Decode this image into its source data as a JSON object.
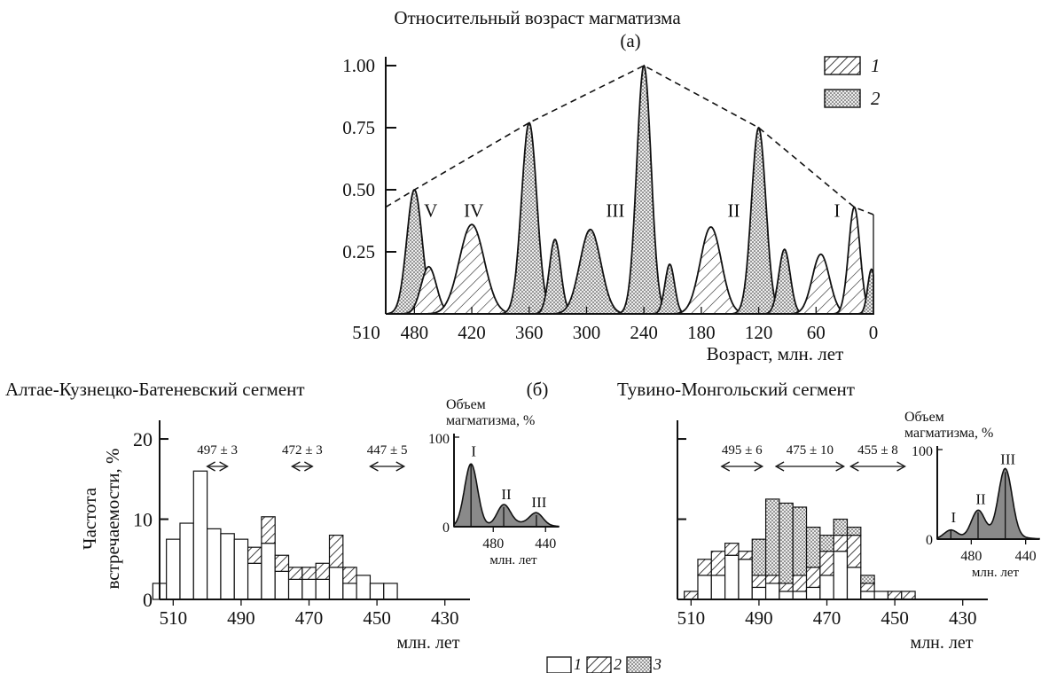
{
  "chart_data": [
    {
      "panel": "(a)",
      "type": "area",
      "title": "Относительный возраст магматизма",
      "panel_label": "(а)",
      "xlabel": "Возраст, млн. лет",
      "ylabel": "",
      "x_ticks": [
        "510",
        "480",
        "420",
        "360",
        "300",
        "240",
        "180",
        "120",
        "60",
        "0"
      ],
      "y_ticks": [
        "0.25",
        "0.50",
        "0.75",
        "1.00"
      ],
      "xlim": [
        510,
        0
      ],
      "ylim": [
        0,
        1.0
      ],
      "legend": {
        "placement": "top-right",
        "entries": [
          "1",
          "2"
        ]
      },
      "envelope_points": [
        [
          510,
          0.43
        ],
        [
          480,
          0.5
        ],
        [
          360,
          0.77
        ],
        [
          240,
          1.0
        ],
        [
          120,
          0.75
        ],
        [
          20,
          0.43
        ],
        [
          0,
          0.4
        ]
      ],
      "peaks": [
        {
          "x": 480,
          "y": 0.5,
          "w": 8,
          "fill": "2"
        },
        {
          "x": 465,
          "y": 0.19,
          "w": 8,
          "fill": "1"
        },
        {
          "x": 420,
          "y": 0.36,
          "w": 13,
          "fill": "1"
        },
        {
          "x": 360,
          "y": 0.77,
          "w": 8,
          "fill": "2"
        },
        {
          "x": 333,
          "y": 0.3,
          "w": 6,
          "fill": "2"
        },
        {
          "x": 296,
          "y": 0.34,
          "w": 11,
          "fill": "2"
        },
        {
          "x": 240,
          "y": 1.0,
          "w": 7.5,
          "fill": "2"
        },
        {
          "x": 213,
          "y": 0.2,
          "w": 5,
          "fill": "2"
        },
        {
          "x": 170,
          "y": 0.35,
          "w": 11,
          "fill": "1"
        },
        {
          "x": 120,
          "y": 0.75,
          "w": 7.5,
          "fill": "2"
        },
        {
          "x": 93,
          "y": 0.26,
          "w": 6,
          "fill": "2"
        },
        {
          "x": 55,
          "y": 0.24,
          "w": 9,
          "fill": "1"
        },
        {
          "x": 20,
          "y": 0.43,
          "w": 6,
          "fill": "1"
        },
        {
          "x": 2,
          "y": 0.18,
          "w": 4,
          "fill": "2"
        }
      ],
      "annotations": [
        {
          "text": "V",
          "x": 463,
          "y": 0.42
        },
        {
          "text": "IV",
          "x": 418,
          "y": 0.42
        },
        {
          "text": "III",
          "x": 270,
          "y": 0.42
        },
        {
          "text": "II",
          "x": 146,
          "y": 0.42
        },
        {
          "text": "I",
          "x": 38,
          "y": 0.42
        }
      ]
    },
    {
      "panel": "(b) left",
      "type": "bar",
      "title": "Алтае-Кузнецко-Батеневский сегмент",
      "panel_label": "(б)",
      "xlabel": "млн. лет",
      "ylabel": "Частота встречаемости, %",
      "ylabel_lines": [
        "Частота",
        "встречаемости, %"
      ],
      "x_ticks": [
        "510",
        "490",
        "470",
        "450",
        "430"
      ],
      "y_ticks": [
        "0",
        "10",
        "20"
      ],
      "xlim": [
        514,
        420
      ],
      "ylim": [
        0,
        21
      ],
      "bin_width": 4,
      "bins": [
        {
          "start": 516,
          "s1": 2,
          "s2": 0,
          "s3": 0
        },
        {
          "start": 512,
          "s1": 7.5,
          "s2": 0,
          "s3": 0
        },
        {
          "start": 508,
          "s1": 9.5,
          "s2": 0,
          "s3": 0
        },
        {
          "start": 504,
          "s1": 16,
          "s2": 0,
          "s3": 0
        },
        {
          "start": 500,
          "s1": 8.8,
          "s2": 0,
          "s3": 0
        },
        {
          "start": 496,
          "s1": 8.2,
          "s2": 0,
          "s3": 0
        },
        {
          "start": 492,
          "s1": 7.5,
          "s2": 0,
          "s3": 0
        },
        {
          "start": 488,
          "s1": 4.5,
          "s2": 2.0,
          "s3": 0
        },
        {
          "start": 484,
          "s1": 7.0,
          "s2": 3.3,
          "s3": 0
        },
        {
          "start": 480,
          "s1": 3.5,
          "s2": 2.0,
          "s3": 0
        },
        {
          "start": 476,
          "s1": 2.5,
          "s2": 1.5,
          "s3": 0
        },
        {
          "start": 472,
          "s1": 2.5,
          "s2": 1.5,
          "s3": 0
        },
        {
          "start": 468,
          "s1": 2.5,
          "s2": 2.0,
          "s3": 0
        },
        {
          "start": 464,
          "s1": 4.0,
          "s2": 4.0,
          "s3": 0
        },
        {
          "start": 460,
          "s1": 2.0,
          "s2": 2.0,
          "s3": 0
        },
        {
          "start": 456,
          "s1": 3.0,
          "s2": 0,
          "s3": 0
        },
        {
          "start": 452,
          "s1": 2.0,
          "s2": 0,
          "s3": 0
        },
        {
          "start": 448,
          "s1": 2.0,
          "s2": 0,
          "s3": 0
        }
      ],
      "ranges": [
        {
          "label": "497 ± 3",
          "from": 500,
          "to": 494
        },
        {
          "label": "472 ± 3",
          "from": 475,
          "to": 469
        },
        {
          "label": "447 ± 5",
          "from": 452,
          "to": 442
        }
      ],
      "inset": {
        "ylabel_lines": [
          "Объем",
          "магматизма, %"
        ],
        "y_ticks": [
          "0",
          "100"
        ],
        "x_ticks": [
          "480",
          "440"
        ],
        "xlabel": "млн. лет",
        "xlim": [
          510,
          430
        ],
        "ylim": [
          0,
          100
        ],
        "peaks": [
          {
            "x": 497,
            "y": 70,
            "w": 5,
            "label": "I"
          },
          {
            "x": 472,
            "y": 22,
            "w": 5,
            "label": "II"
          },
          {
            "x": 447,
            "y": 13,
            "w": 5,
            "label": "III"
          }
        ]
      }
    },
    {
      "panel": "(b) right",
      "type": "bar",
      "title": "Тувино-Монгольский сегмент",
      "xlabel": "млн. лет",
      "ylabel": "",
      "x_ticks": [
        "510",
        "490",
        "470",
        "450",
        "430"
      ],
      "y_ticks": [
        "",
        "",
        ""
      ],
      "xlim": [
        514,
        420
      ],
      "ylim": [
        0,
        21
      ],
      "bin_width": 4,
      "bins": [
        {
          "start": 512,
          "s1": 0,
          "s2": 1.0,
          "s3": 0
        },
        {
          "start": 508,
          "s1": 3.0,
          "s2": 2.0,
          "s3": 0
        },
        {
          "start": 504,
          "s1": 3.0,
          "s2": 3.0,
          "s3": 0
        },
        {
          "start": 500,
          "s1": 5.5,
          "s2": 1.5,
          "s3": 0
        },
        {
          "start": 496,
          "s1": 5.0,
          "s2": 1.0,
          "s3": 0
        },
        {
          "start": 492,
          "s1": 1.5,
          "s2": 1.5,
          "s3": 4.5
        },
        {
          "start": 488,
          "s1": 2.0,
          "s2": 1.0,
          "s3": 9.5
        },
        {
          "start": 484,
          "s1": 1.0,
          "s2": 1.0,
          "s3": 10.0
        },
        {
          "start": 480,
          "s1": 1.0,
          "s2": 2.0,
          "s3": 8.5
        },
        {
          "start": 476,
          "s1": 1.5,
          "s2": 2.5,
          "s3": 5.0
        },
        {
          "start": 472,
          "s1": 3.0,
          "s2": 3.0,
          "s3": 2.0
        },
        {
          "start": 468,
          "s1": 6.0,
          "s2": 2.0,
          "s3": 2.0
        },
        {
          "start": 464,
          "s1": 4.0,
          "s2": 4.0,
          "s3": 1.0
        },
        {
          "start": 460,
          "s1": 1.0,
          "s2": 1.0,
          "s3": 1.0
        },
        {
          "start": 456,
          "s1": 1.0,
          "s2": 0,
          "s3": 0
        },
        {
          "start": 452,
          "s1": 0,
          "s2": 1.0,
          "s3": 0
        },
        {
          "start": 448,
          "s1": 0,
          "s2": 1.0,
          "s3": 0
        }
      ],
      "ranges": [
        {
          "label": "495 ± 6",
          "from": 501,
          "to": 489
        },
        {
          "label": "475 ± 10",
          "from": 485,
          "to": 465
        },
        {
          "label": "455 ± 8",
          "from": 463,
          "to": 447
        }
      ],
      "inset": {
        "ylabel_lines": [
          "Объем",
          "магматизма, %"
        ],
        "y_ticks": [
          "0",
          "100"
        ],
        "x_ticks": [
          "480",
          "440"
        ],
        "xlabel": "млн. лет",
        "xlim": [
          505,
          430
        ],
        "ylim": [
          0,
          100
        ],
        "peaks": [
          {
            "x": 495,
            "y": 10,
            "w": 5,
            "label": "I"
          },
          {
            "x": 475,
            "y": 30,
            "w": 5,
            "label": "II"
          },
          {
            "x": 455,
            "y": 75,
            "w": 5,
            "label": "III"
          }
        ]
      }
    }
  ],
  "bottom_legend": {
    "entries": [
      "1",
      "2",
      "3"
    ]
  }
}
